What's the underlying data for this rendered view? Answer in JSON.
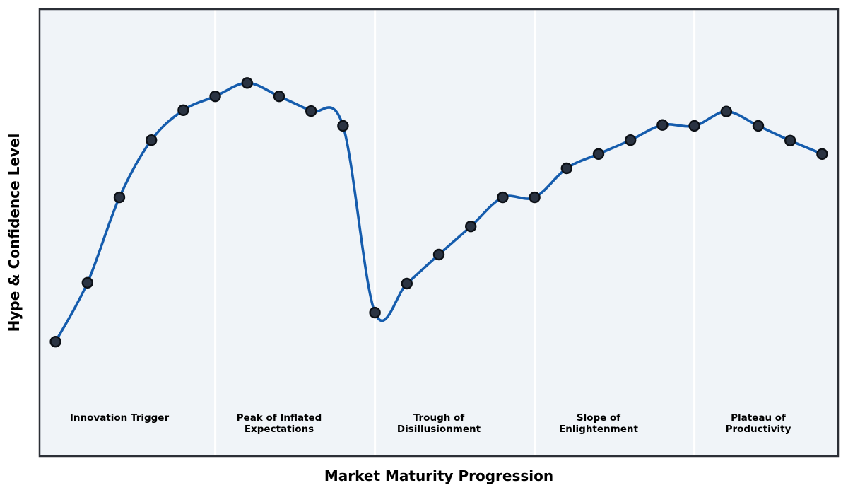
{
  "figure": {
    "xlabel": "Market Maturity Progression",
    "ylabel": "Hype & Confidence Level"
  },
  "colors": {
    "figure_background": "#ffffff",
    "plot_background": "#f0f4f8",
    "plot_border": "#2b2f36",
    "phase_divider": "#ffffff",
    "curve_line": "#155cad",
    "marker_fill": "#2a3342",
    "marker_edge": "#0c1016",
    "label_text": "#000000"
  },
  "chart_data": {
    "type": "line",
    "title": "",
    "xlabel": "Market Maturity Progression",
    "ylabel": "Hype & Confidence Level",
    "x": [
      0,
      1,
      2,
      3,
      4,
      5,
      6,
      7,
      8,
      9,
      10,
      11,
      12,
      13,
      14,
      15,
      16,
      17,
      18,
      19,
      20,
      21,
      22,
      23,
      24
    ],
    "series": [
      {
        "name": "Hype & Confidence Level",
        "values": [
          25.6,
          38.8,
          57.9,
          70.7,
          77.4,
          80.5,
          83.5,
          80.5,
          77.2,
          73.9,
          32.1,
          38.6,
          45.1,
          51.4,
          57.9,
          57.9,
          64.4,
          67.6,
          70.7,
          74.1,
          73.9,
          77.1,
          73.9,
          70.6,
          67.6
        ]
      }
    ],
    "xlim": [
      -0.5,
      24.5
    ],
    "ylim": [
      0,
      100
    ],
    "grid": false,
    "legend": "none",
    "smooth_spline": true,
    "markers": true,
    "phase_boundaries_x": [
      5,
      10,
      15,
      20
    ],
    "phases": [
      {
        "name": "innovation-trigger",
        "label_line1": "Innovation Trigger",
        "label_line2": "",
        "center_x": 2
      },
      {
        "name": "peak-of-inflated-expectations",
        "label_line1": "Peak of Inflated",
        "label_line2": "Expectations",
        "center_x": 7
      },
      {
        "name": "trough-of-disillusionment",
        "label_line1": "Trough of",
        "label_line2": "Disillusionment",
        "center_x": 12
      },
      {
        "name": "slope-of-enlightenment",
        "label_line1": "Slope of",
        "label_line2": "Enlightenment",
        "center_x": 17
      },
      {
        "name": "plateau-of-productivity",
        "label_line1": "Plateau of",
        "label_line2": "Productivity",
        "center_x": 22
      }
    ]
  }
}
